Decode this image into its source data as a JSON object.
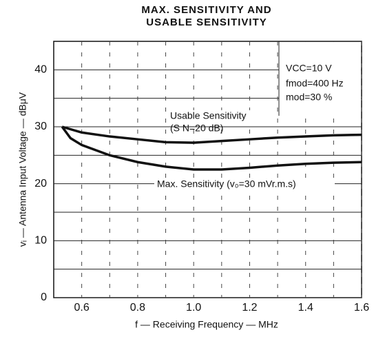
{
  "chart_data": {
    "type": "line",
    "title": [
      "MAX. SENSITIVITY AND",
      "USABLE SENSITIVITY"
    ],
    "x_label": "f — Receiving Frequency — MHz",
    "y_label": "vᵢ — Antenna Input Voltage — dBμV",
    "xlim": [
      0.5,
      1.6
    ],
    "xticks": [
      0.6,
      0.8,
      {
        "value": 1.0,
        "label": "1.0"
      },
      1.2,
      1.4,
      1.6
    ],
    "xminor": [
      0.7,
      0.9,
      1.1,
      1.3,
      1.5
    ],
    "ylim": [
      0,
      45
    ],
    "yticks": [
      0,
      10,
      20,
      30,
      40
    ],
    "yminor": [
      5,
      15,
      25,
      35
    ],
    "grid": true,
    "annotations": [
      "VCC=10 V",
      "fmod=400 Hz",
      "mod=30 %",
      "(S N=20 dB)"
    ],
    "series": [
      {
        "name": "Usable Sensitivity",
        "color": "#111",
        "x": [
          0.53,
          0.6,
          0.7,
          0.8,
          0.9,
          1.0,
          1.1,
          1.2,
          1.3,
          1.4,
          1.5,
          1.6
        ],
        "values": [
          30,
          29,
          28.3,
          27.8,
          27.3,
          27.2,
          27.5,
          27.8,
          28.1,
          28.3,
          28.5,
          28.6
        ]
      },
      {
        "name": "Max. Sensitivity (v₀=30 mVr.m.s)",
        "color": "#111",
        "x": [
          0.53,
          0.56,
          0.6,
          0.7,
          0.8,
          0.9,
          1.0,
          1.1,
          1.2,
          1.3,
          1.4,
          1.5,
          1.6
        ],
        "values": [
          30,
          28,
          26.8,
          25,
          23.8,
          23,
          22.5,
          22.5,
          22.8,
          23.2,
          23.5,
          23.7,
          23.8
        ]
      }
    ]
  }
}
